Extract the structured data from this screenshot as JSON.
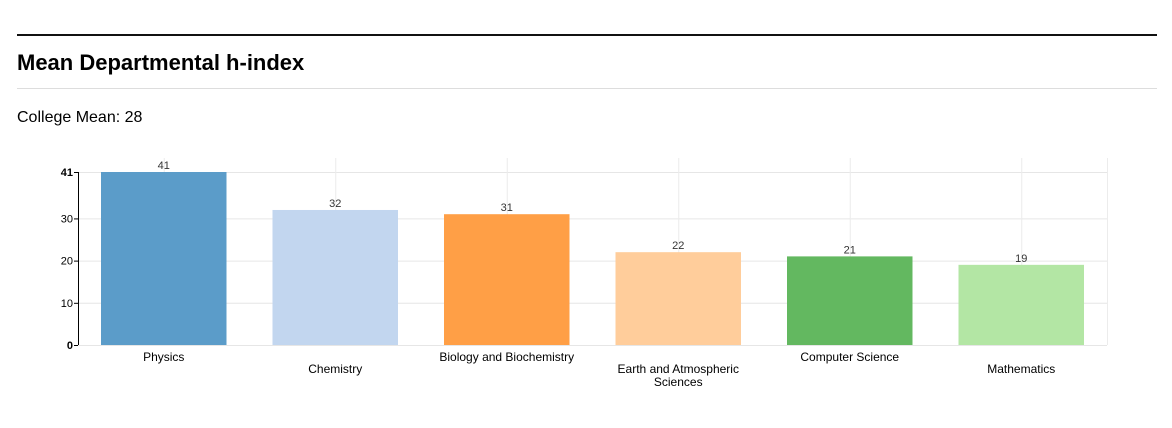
{
  "header": {
    "title": "Mean Departmental h-index"
  },
  "summary": {
    "label": "College Mean: 28"
  },
  "chart_data": {
    "type": "bar",
    "categories": [
      "Physics",
      "Chemistry",
      "Biology and Biochemistry",
      "Earth and Atmospheric Sciences",
      "Computer Science",
      "Mathematics"
    ],
    "values": [
      41,
      32,
      31,
      22,
      21,
      19
    ],
    "data_labels": [
      "41",
      "32",
      "31",
      "22",
      "21",
      "19"
    ],
    "colors": [
      "#5b9cc9",
      "#c2d6ef",
      "#ff9f46",
      "#ffcd9b",
      "#63b860",
      "#b3e6a4"
    ],
    "yticks": [
      0,
      10,
      20,
      30,
      41
    ],
    "ylim": [
      0,
      41
    ],
    "title": "",
    "xlabel": "",
    "ylabel": "",
    "grid": true,
    "legend": "none"
  }
}
